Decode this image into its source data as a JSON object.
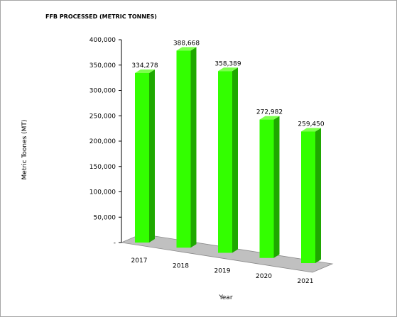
{
  "chart_data": {
    "type": "bar",
    "title": "FFB PROCESSED (METRIC TONNES)",
    "xlabel": "Year",
    "ylabel": "Metric Toones (MT)",
    "categories": [
      "2017",
      "2018",
      "2019",
      "2020",
      "2021"
    ],
    "values": [
      334278,
      388668,
      358389,
      272982,
      259450
    ],
    "data_labels": [
      "334,278",
      "388,668",
      "358,389",
      "272,982",
      "259,450"
    ],
    "ylim": [
      0,
      400000
    ],
    "yticks": [
      0,
      50000,
      100000,
      150000,
      200000,
      250000,
      300000,
      350000,
      400000
    ],
    "ytick_labels": [
      "-",
      "50,000",
      "100,000",
      "150,000",
      "200,000",
      "250,000",
      "300,000",
      "350,000",
      "400,000"
    ],
    "grid": false,
    "legend": "none",
    "colors": {
      "bar_front": "#33ff00",
      "bar_side": "#1fa800",
      "bar_top": "#7dff4d",
      "floor": "#c0c0c0"
    }
  }
}
